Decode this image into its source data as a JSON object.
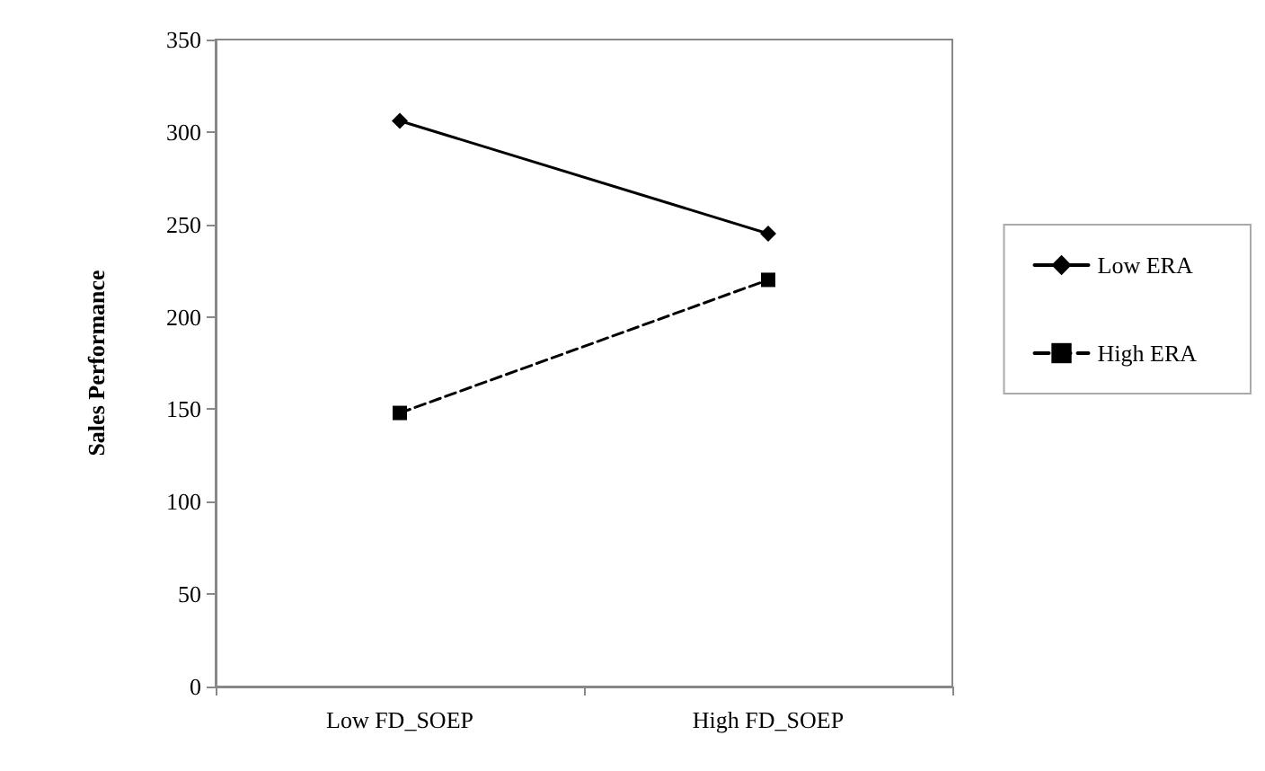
{
  "chart_data": {
    "type": "line",
    "ylabel": "Sales Performance",
    "categories": [
      "Low FD_SOEP",
      "High FD_SOEP"
    ],
    "series": [
      {
        "name": "Low ERA",
        "color": "#000000",
        "values": [
          306,
          245
        ],
        "marker": "diamond",
        "line_style": "solid"
      },
      {
        "name": "High ERA",
        "color": "#000000",
        "values": [
          148,
          220
        ],
        "marker": "square",
        "line_style": "dashed"
      }
    ],
    "ylim": [
      0,
      350
    ],
    "yticks": [
      0,
      50,
      100,
      150,
      200,
      250,
      300,
      350
    ],
    "grid": false,
    "legend": "right"
  }
}
